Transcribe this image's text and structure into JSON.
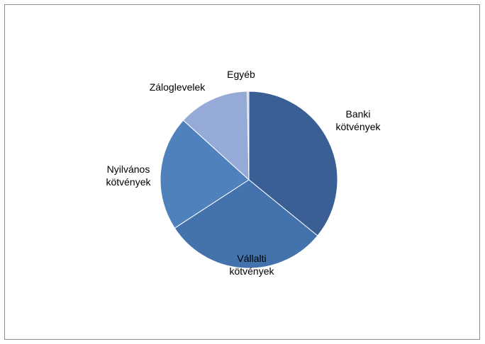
{
  "chart_data": {
    "type": "pie",
    "title": "",
    "start_angle_deg": 0,
    "direction": "clockwise",
    "legend": "none",
    "slices": [
      {
        "label": [
          "Banki",
          "kötvények"
        ],
        "value": 36,
        "color": "#3a5f94"
      },
      {
        "label": [
          "Vállalti",
          "kötvények"
        ],
        "value": 30,
        "color": "#4472ac"
      },
      {
        "label": [
          "Nyilvános",
          "kötvények"
        ],
        "value": 21,
        "color": "#4f81bd"
      },
      {
        "label": [
          "Záloglevelek"
        ],
        "value": 13,
        "color": "#95aad6"
      },
      {
        "label": [
          "Egyéb"
        ],
        "value": 0.3,
        "color": "#b9c9e6"
      }
    ]
  }
}
